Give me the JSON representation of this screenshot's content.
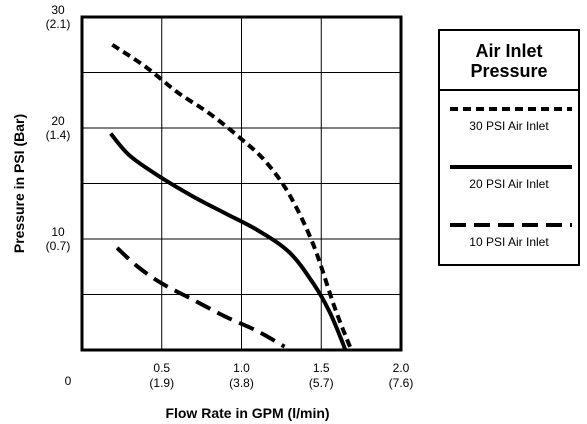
{
  "chart_data": {
    "type": "line",
    "xlabel": "Flow Rate in GPM (l/min)",
    "ylabel": "Pressure in PSI (Bar)",
    "xlim": [
      0,
      2.0
    ],
    "ylim": [
      0,
      30
    ],
    "grid": true,
    "x_ticks": [
      {
        "value": 0,
        "label": "0",
        "sub": ""
      },
      {
        "value": 0.5,
        "label": "0.5",
        "sub": "(1.9)"
      },
      {
        "value": 1.0,
        "label": "1.0",
        "sub": "(3.8)"
      },
      {
        "value": 1.5,
        "label": "1.5",
        "sub": "(5.7)"
      },
      {
        "value": 2.0,
        "label": "2.0",
        "sub": "(7.6)"
      }
    ],
    "y_ticks": [
      {
        "value": 10,
        "label": "10",
        "sub": "(0.7)"
      },
      {
        "value": 20,
        "label": "20",
        "sub": "(1.4)"
      },
      {
        "value": 30,
        "label": "30",
        "sub": "(2.1)"
      }
    ],
    "series": [
      {
        "name": "30 PSI Air Inlet",
        "style": "short-dash",
        "points": [
          [
            0.19,
            27.5
          ],
          [
            0.4,
            25.5
          ],
          [
            0.6,
            23.2
          ],
          [
            0.8,
            21.3
          ],
          [
            1.0,
            19.0
          ],
          [
            1.15,
            17.0
          ],
          [
            1.3,
            14.0
          ],
          [
            1.45,
            9.5
          ],
          [
            1.58,
            4.0
          ],
          [
            1.66,
            1.0
          ],
          [
            1.69,
            0
          ]
        ]
      },
      {
        "name": "20 PSI Air Inlet",
        "style": "solid",
        "points": [
          [
            0.18,
            19.5
          ],
          [
            0.3,
            17.5
          ],
          [
            0.5,
            15.5
          ],
          [
            0.7,
            13.8
          ],
          [
            0.9,
            12.3
          ],
          [
            1.1,
            10.8
          ],
          [
            1.3,
            8.8
          ],
          [
            1.45,
            6.0
          ],
          [
            1.55,
            3.5
          ],
          [
            1.63,
            0.8
          ],
          [
            1.65,
            0
          ]
        ]
      },
      {
        "name": "10 PSI Air Inlet",
        "style": "long-dash",
        "points": [
          [
            0.22,
            9.2
          ],
          [
            0.35,
            7.5
          ],
          [
            0.5,
            6.0
          ],
          [
            0.7,
            4.5
          ],
          [
            0.9,
            3.0
          ],
          [
            1.1,
            1.7
          ],
          [
            1.27,
            0.3
          ]
        ]
      }
    ],
    "legend": {
      "title": "Air Inlet\nPressure",
      "position": "right"
    },
    "colors": {
      "line": "#000000",
      "grid": "#000000",
      "background": "#ffffff"
    }
  }
}
